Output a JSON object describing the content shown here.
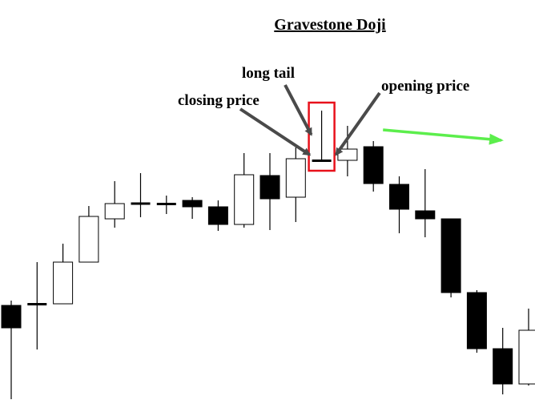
{
  "chart_data": {
    "type": "candlestick",
    "title": "Gravestone Doji",
    "xlabel": "",
    "ylabel": "",
    "grid": false,
    "legend": "none",
    "y_axis": "none",
    "candles": [
      {
        "index": 0,
        "open": 128,
        "close": 100,
        "high": 134,
        "low": 11
      },
      {
        "index": 1,
        "open": 129,
        "close": 130,
        "high": 182,
        "low": 73
      },
      {
        "index": 2,
        "open": 130,
        "close": 182,
        "high": 205,
        "low": 130
      },
      {
        "index": 3,
        "open": 182,
        "close": 239,
        "high": 252,
        "low": 182
      },
      {
        "index": 4,
        "open": 236,
        "close": 255,
        "high": 283,
        "low": 225
      },
      {
        "index": 5,
        "open": 254,
        "close": 256,
        "high": 293,
        "low": 238
      },
      {
        "index": 6,
        "open": 254,
        "close": 255,
        "high": 265,
        "low": 242
      },
      {
        "index": 7,
        "open": 259,
        "close": 251,
        "high": 263,
        "low": 236
      },
      {
        "index": 8,
        "open": 251,
        "close": 229,
        "high": 259,
        "low": 221
      },
      {
        "index": 9,
        "open": 229,
        "close": 291,
        "high": 318,
        "low": 225
      },
      {
        "index": 10,
        "open": 290,
        "close": 261,
        "high": 318,
        "low": 222
      },
      {
        "index": 11,
        "open": 263,
        "close": 311,
        "high": 325,
        "low": 232
      },
      {
        "index": 12,
        "open": 308,
        "close": 309,
        "high": 371,
        "low": 308
      },
      {
        "index": 13,
        "open": 309,
        "close": 323,
        "high": 352,
        "low": 289
      },
      {
        "index": 14,
        "open": 326,
        "close": 280,
        "high": 333,
        "low": 270
      },
      {
        "index": 15,
        "open": 279,
        "close": 248,
        "high": 289,
        "low": 218
      },
      {
        "index": 16,
        "open": 246,
        "close": 236,
        "high": 298,
        "low": 213
      },
      {
        "index": 17,
        "open": 236,
        "close": 144,
        "high": 236,
        "low": 138
      },
      {
        "index": 18,
        "open": 144,
        "close": 74,
        "high": 147,
        "low": 69
      },
      {
        "index": 19,
        "open": 74,
        "close": 30,
        "high": 100,
        "low": 17
      },
      {
        "index": 20,
        "open": 30,
        "close": 97,
        "high": 124,
        "low": 28
      }
    ],
    "colors": {
      "bullish": "#ffffff",
      "bearish": "#000000",
      "outline": "#000000",
      "highlight_box": "#e8111b",
      "trend_arrow": "#5cee4c",
      "annotation_arrow": "#4a4a4a"
    },
    "highlight": {
      "candle_index": 12
    },
    "annotations": [
      {
        "text": "long tail",
        "points_to": "upper-shadow",
        "candle_index": 12
      },
      {
        "text": "closing price",
        "points_to": "close",
        "candle_index": 12
      },
      {
        "text": "opening price",
        "points_to": "open",
        "candle_index": 12
      }
    ],
    "trend_arrow": {
      "direction": "down",
      "from_index": 14,
      "to_index": 20
    }
  }
}
